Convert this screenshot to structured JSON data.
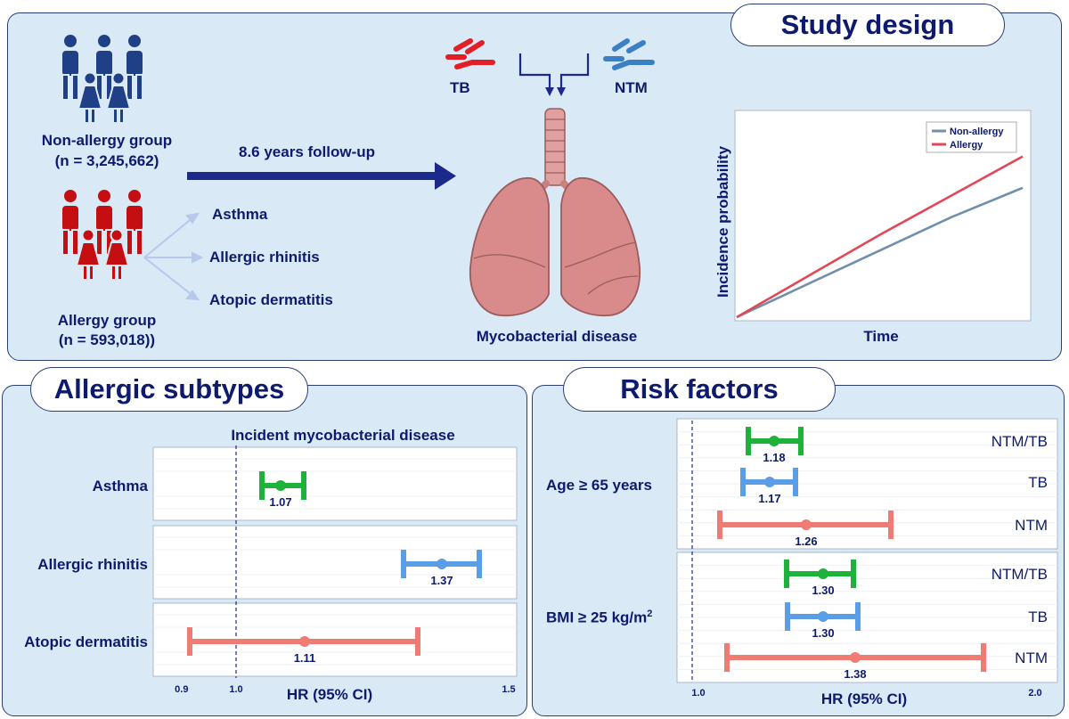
{
  "study_design": {
    "title": "Study design",
    "non_allergy": {
      "name": "Non-allergy group",
      "n": "(n = 3,245,662)",
      "color": "#1f3f86"
    },
    "allergy": {
      "name": "Allergy group",
      "n": "(n = 593,018))",
      "color": "#c40e12"
    },
    "follow_up": "8.6 years follow-up",
    "subtypes": [
      "Asthma",
      "Allergic rhinitis",
      "Atopic dermatitis"
    ],
    "tb_label": "TB",
    "ntm_label": "NTM",
    "outcome": "Mycobacterial disease"
  },
  "incidence_chart": {
    "type": "line",
    "xlabel": "Time",
    "ylabel": "Incidence probability",
    "legend_position": "top-right",
    "x": [
      0,
      0.25,
      0.5,
      0.75,
      1.0
    ],
    "series": [
      {
        "name": "Non-allergy",
        "color": "#6f8fab",
        "values": [
          0,
          0.17,
          0.34,
          0.51,
          0.66
        ]
      },
      {
        "name": "Allergy",
        "color": "#e04857",
        "values": [
          0,
          0.21,
          0.42,
          0.62,
          0.82
        ]
      }
    ]
  },
  "allergic_subtypes": {
    "title": "Allergic subtypes",
    "chart_data": {
      "type": "forest",
      "title": "Incident mycobacterial disease",
      "xlabel": "HR (95% CI)",
      "xticks": [
        "0.9",
        "1.0",
        "1.5"
      ],
      "reference": 1.0,
      "rows": [
        {
          "label": "Asthma",
          "hr": "1.07",
          "color": "#1db33a"
        },
        {
          "label": "Allergic rhinitis",
          "hr": "1.37",
          "color": "#5b9ee8"
        },
        {
          "label": "Atopic dermatitis",
          "hr": "1.11",
          "color": "#ef7b72"
        }
      ]
    }
  },
  "risk_factors": {
    "title": "Risk factors",
    "chart_data": {
      "type": "forest",
      "xlabel": "HR (95% CI)",
      "xticks": [
        "1.0",
        "2.0"
      ],
      "reference": 1.0,
      "groups": [
        {
          "label": "Age ≥ 65 years",
          "rows": [
            {
              "label": "NTM/TB",
              "hr": "1.18",
              "color": "#1db33a"
            },
            {
              "label": "TB",
              "hr": "1.17",
              "color": "#5b9ee8"
            },
            {
              "label": "NTM",
              "hr": "1.26",
              "color": "#ef7b72"
            }
          ]
        },
        {
          "label": "BMI ≥ 25 kg/m",
          "label_sup": "2",
          "rows": [
            {
              "label": "NTM/TB",
              "hr": "1.30",
              "color": "#1db33a"
            },
            {
              "label": "TB",
              "hr": "1.30",
              "color": "#5b9ee8"
            },
            {
              "label": "NTM",
              "hr": "1.38",
              "color": "#ef7b72"
            }
          ]
        }
      ]
    }
  }
}
